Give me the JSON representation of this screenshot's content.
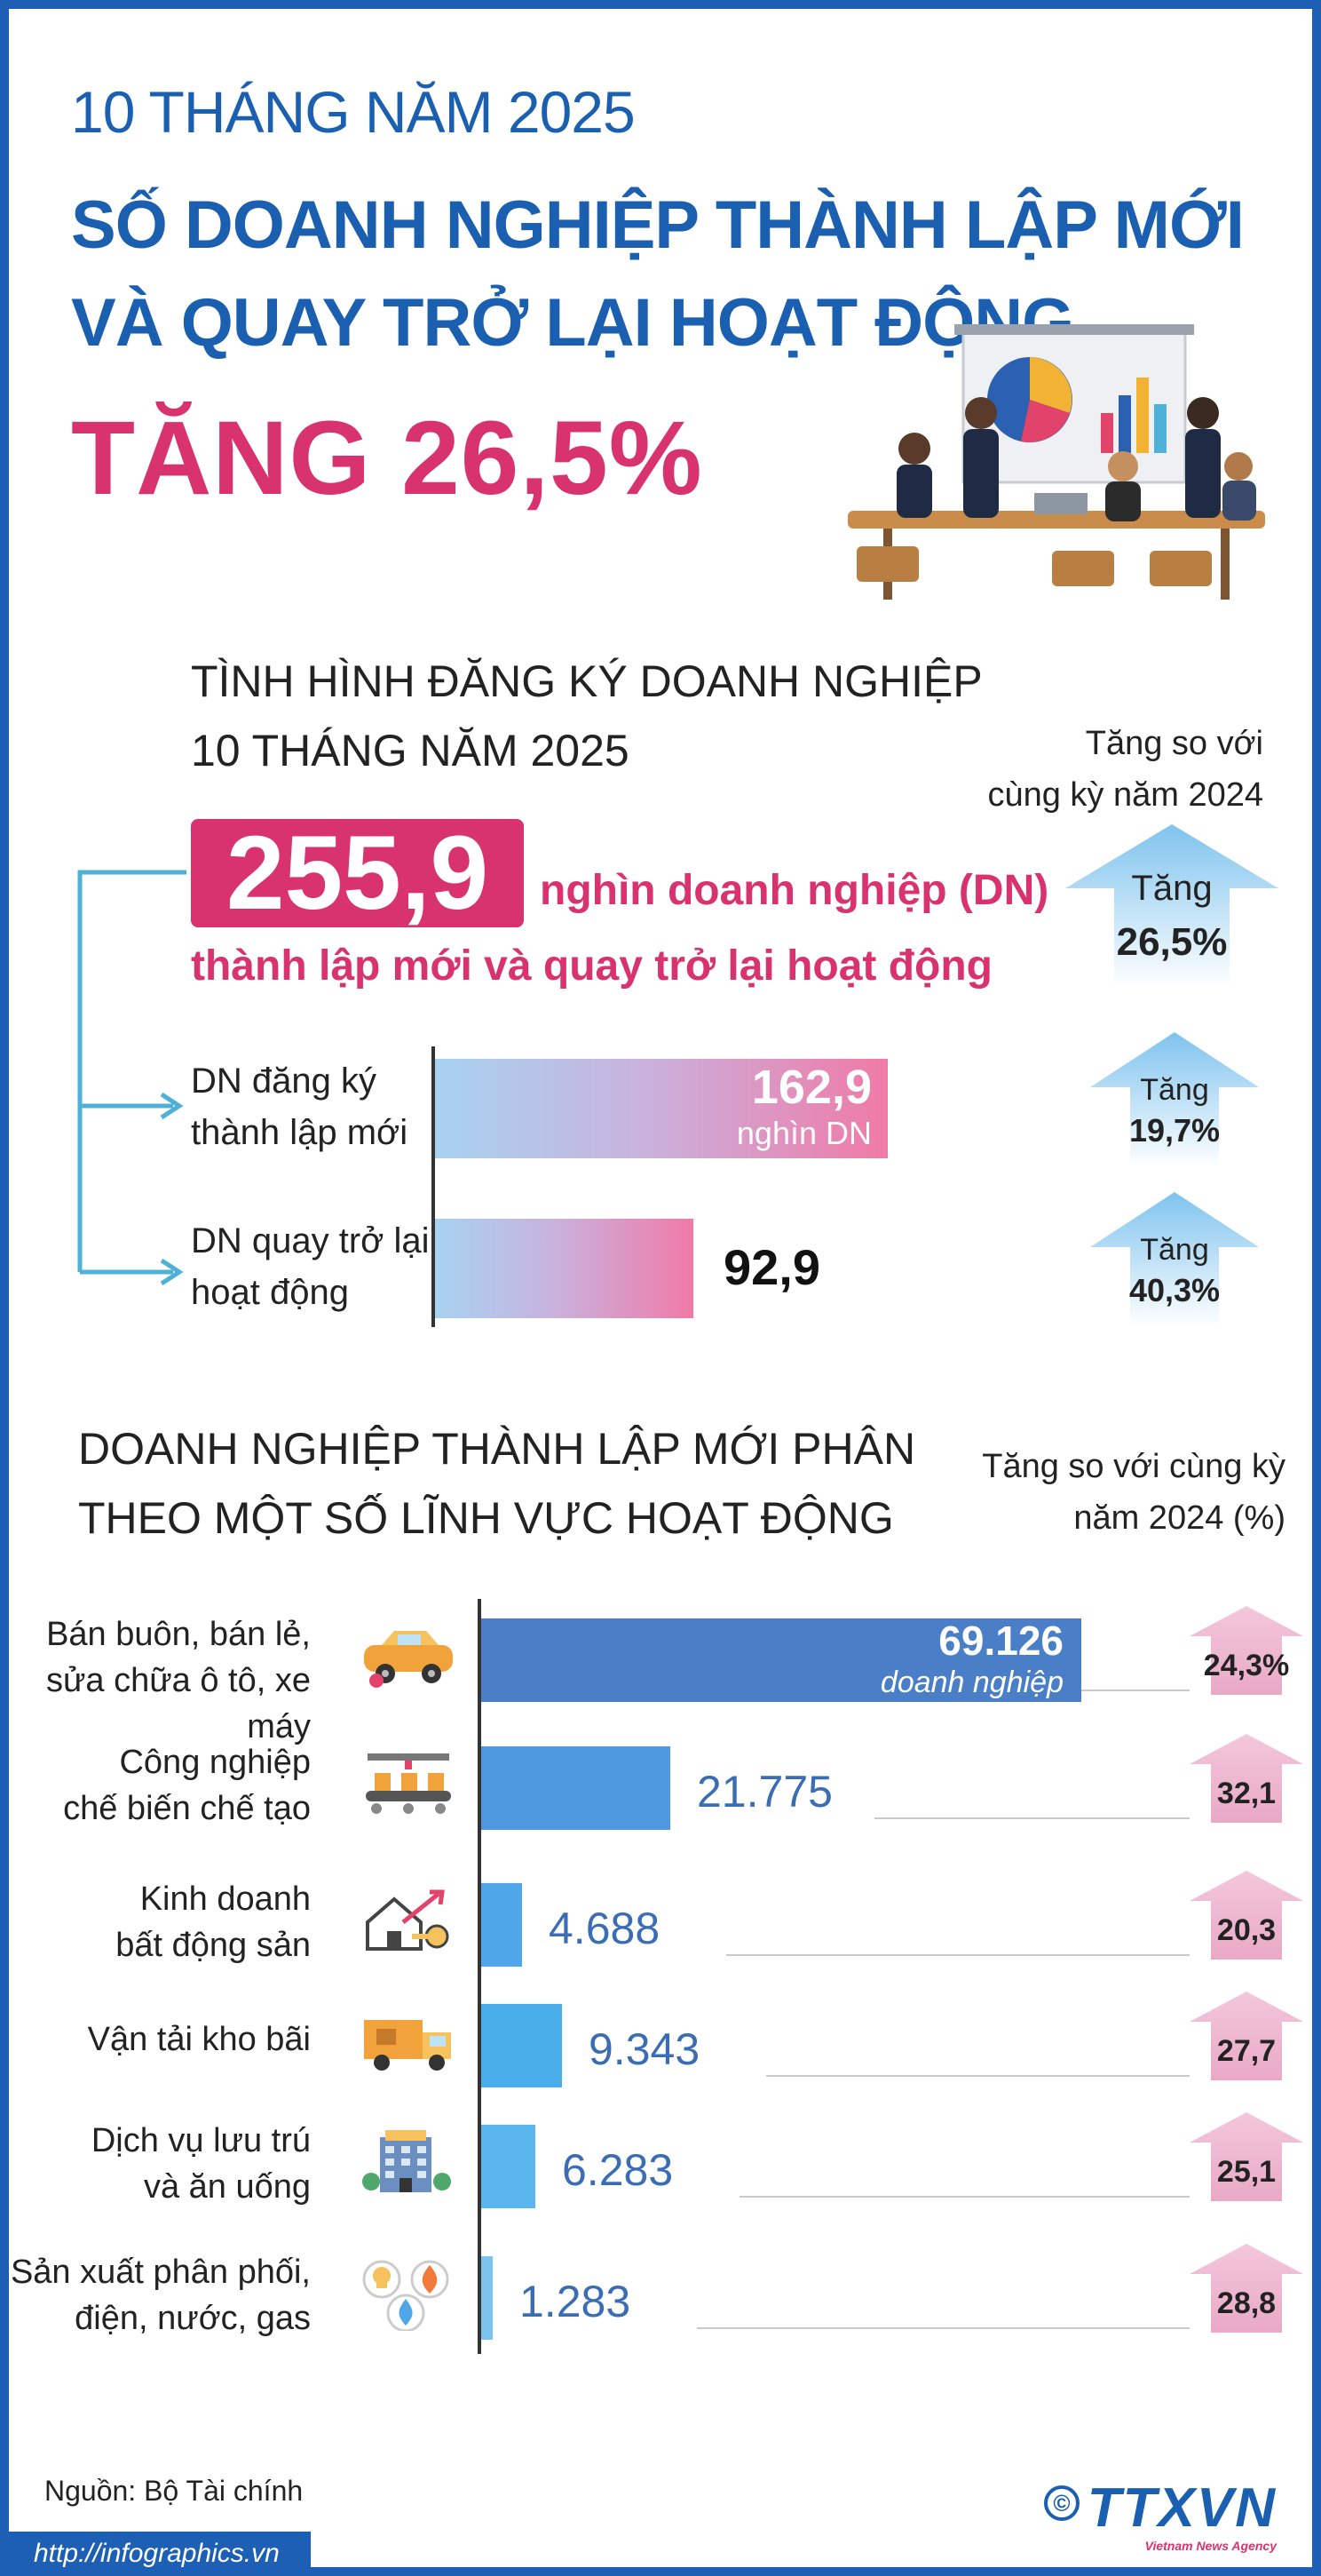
{
  "header": {
    "line1": "10 THÁNG NĂM 2025",
    "line2": "SỐ DOANH NGHIỆP THÀNH LẬP MỚI",
    "line3": "VÀ QUAY TRỞ LẠI HOẠT ĐỘNG",
    "line4": "TĂNG 26,5%"
  },
  "section1": {
    "title_line1": "TÌNH HÌNH ĐĂNG KÝ DOANH NGHIỆP",
    "title_line2": "10 THÁNG NĂM 2025",
    "compare_line1": "Tăng so với",
    "compare_line2": "cùng kỳ năm 2024",
    "total_value": "255,9",
    "total_unit": "nghìn doanh nghiệp (DN)",
    "total_desc": "thành lập mới và quay trở lại hoạt động",
    "total_change_label": "Tăng",
    "total_change": "26,5%",
    "colors": {
      "accent": "#d9336f",
      "brand": "#1a5fb0",
      "arrow": "#8ccaf0"
    }
  },
  "chart_data": [
    {
      "type": "bar",
      "orientation": "horizontal",
      "categories": [
        "DN đăng ký thành lập mới",
        "DN quay trở lại hoạt động"
      ],
      "category_lines": [
        [
          "DN đăng ký",
          "thành lập mới"
        ],
        [
          "DN quay trở lại",
          "hoạt động"
        ]
      ],
      "values": [
        162.9,
        92.9
      ],
      "value_labels": [
        "162,9",
        "92,9"
      ],
      "first_value_unit": "nghìn DN",
      "change_label": "Tăng",
      "changes": [
        "19,7%",
        "40,3%"
      ]
    },
    {
      "type": "bar",
      "orientation": "horizontal",
      "title_line1": "DOANH NGHIỆP THÀNH LẬP MỚI PHÂN",
      "title_line2": "THEO MỘT SỐ LĨNH VỰC HOẠT ĐỘNG",
      "compare_line1": "Tăng so với cùng kỳ",
      "compare_line2": "năm 2024 (%)",
      "categories": [
        "Bán buôn, bán lẻ, sửa chữa ô tô, xe máy",
        "Công nghiệp chế biến chế tạo",
        "Kinh doanh bất động sản",
        "Vận tải kho bãi",
        "Dịch vụ lưu trú và ăn uống",
        "Sản xuất phân phối, điện, nước, gas"
      ],
      "category_lines": [
        [
          "Bán buôn, bán lẻ,",
          "sửa chữa ô tô, xe máy"
        ],
        [
          "Công nghiệp",
          "chế biến chế tạo"
        ],
        [
          "Kinh doanh",
          "bất động sản"
        ],
        [
          "Vận tải kho bãi"
        ],
        [
          "Dịch vụ lưu trú",
          "và ăn uống"
        ],
        [
          "Sản xuất phân phối,",
          "điện, nước, gas"
        ]
      ],
      "values": [
        69126,
        21775,
        4688,
        9343,
        6283,
        1283
      ],
      "value_labels": [
        "69.126",
        "21.775",
        "4.688",
        "9.343",
        "6.283",
        "1.283"
      ],
      "first_value_unit": "doanh nghiệp",
      "changes": [
        "24,3%",
        "32,1",
        "20,3",
        "27,7",
        "25,1",
        "28,8"
      ],
      "icons": [
        "car-icon",
        "factory-conveyor-icon",
        "house-key-icon",
        "delivery-truck-icon",
        "hotel-icon",
        "utilities-icon"
      ],
      "colors": [
        "#4a7fc8",
        "#4d98df",
        "#4fa6e8",
        "#4aaeea",
        "#5ab6ec",
        "#7cc4ef"
      ]
    }
  ],
  "footer": {
    "source": "Nguồn: Bộ Tài chính",
    "url": "http://infographics.vn",
    "copyright": "©",
    "brand": "TTXVN",
    "brand_sub": "Vietnam News Agency"
  }
}
